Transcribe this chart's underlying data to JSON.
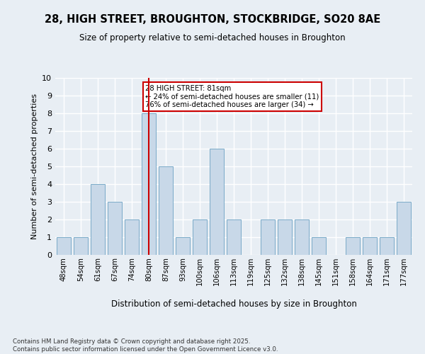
{
  "title_line1": "28, HIGH STREET, BROUGHTON, STOCKBRIDGE, SO20 8AE",
  "title_line2": "Size of property relative to semi-detached houses in Broughton",
  "xlabel": "Distribution of semi-detached houses by size in Broughton",
  "ylabel": "Number of semi-detached properties",
  "categories": [
    "48sqm",
    "54sqm",
    "61sqm",
    "67sqm",
    "74sqm",
    "80sqm",
    "87sqm",
    "93sqm",
    "100sqm",
    "106sqm",
    "113sqm",
    "119sqm",
    "125sqm",
    "132sqm",
    "138sqm",
    "145sqm",
    "151sqm",
    "158sqm",
    "164sqm",
    "171sqm",
    "177sqm"
  ],
  "values": [
    1,
    1,
    4,
    3,
    2,
    8,
    5,
    1,
    2,
    6,
    2,
    0,
    2,
    2,
    2,
    1,
    0,
    1,
    1,
    1,
    3
  ],
  "bar_color": "#c8d8e8",
  "bar_edge_color": "#7aaac8",
  "highlight_index": 5,
  "highlight_line_color": "#cc0000",
  "annotation_text": "28 HIGH STREET: 81sqm\n← 24% of semi-detached houses are smaller (11)\n76% of semi-detached houses are larger (34) →",
  "annotation_box_color": "#ffffff",
  "annotation_box_edge": "#cc0000",
  "ylim": [
    0,
    10
  ],
  "yticks": [
    0,
    1,
    2,
    3,
    4,
    5,
    6,
    7,
    8,
    9,
    10
  ],
  "footer_line1": "Contains HM Land Registry data © Crown copyright and database right 2025.",
  "footer_line2": "Contains public sector information licensed under the Open Government Licence v3.0.",
  "background_color": "#e8eef4",
  "plot_background_color": "#e8eef4",
  "grid_color": "#ffffff"
}
